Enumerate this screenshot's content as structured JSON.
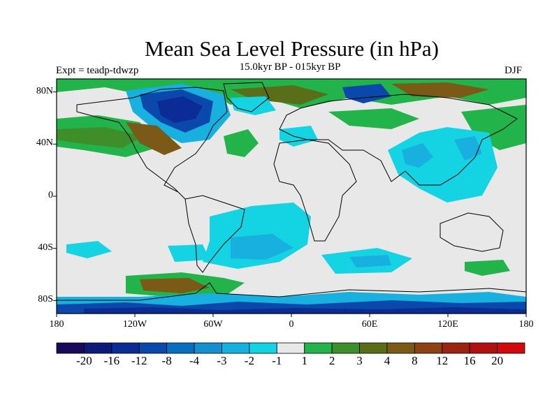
{
  "title": "Mean Sea Level Pressure (in hPa)",
  "subtitle": "15.0kyr BP - 015kyr BP",
  "experiment": "Expt = teadp-tdwzp",
  "season": "DJF",
  "map": {
    "projection": "cylindrical equidistant",
    "lon_range": [
      -180,
      180
    ],
    "lat_range": [
      -90,
      90
    ],
    "lat_ticks": [
      {
        "lat": 80,
        "label": "80N"
      },
      {
        "lat": 40,
        "label": "40N"
      },
      {
        "lat": 0,
        "label": "0"
      },
      {
        "lat": -40,
        "label": "40S"
      },
      {
        "lat": -80,
        "label": "80S"
      }
    ],
    "lon_ticks": [
      {
        "lon": -180,
        "label": "180"
      },
      {
        "lon": -120,
        "label": "120W"
      },
      {
        "lon": -60,
        "label": "60W"
      },
      {
        "lon": 0,
        "label": "0"
      },
      {
        "lon": 60,
        "label": "60E"
      },
      {
        "lon": 120,
        "label": "120E"
      },
      {
        "lon": 180,
        "label": "180"
      }
    ]
  },
  "colorbar": {
    "colors": [
      "#1a0a5c",
      "#0c1a78",
      "#0a2c94",
      "#0a48ac",
      "#0a6ec0",
      "#1490d0",
      "#18b0de",
      "#14d4e4",
      "#e8e8e8",
      "#22b44a",
      "#3e8e2a",
      "#5a6e1a",
      "#7a5a16",
      "#8e4212",
      "#9a2410",
      "#b01010",
      "#d00a0a"
    ],
    "labels": [
      "-20",
      "-16",
      "-12",
      "-8",
      "-4",
      "-3",
      "-2",
      "-1",
      "1",
      "2",
      "3",
      "4",
      "8",
      "12",
      "16",
      "20"
    ]
  }
}
